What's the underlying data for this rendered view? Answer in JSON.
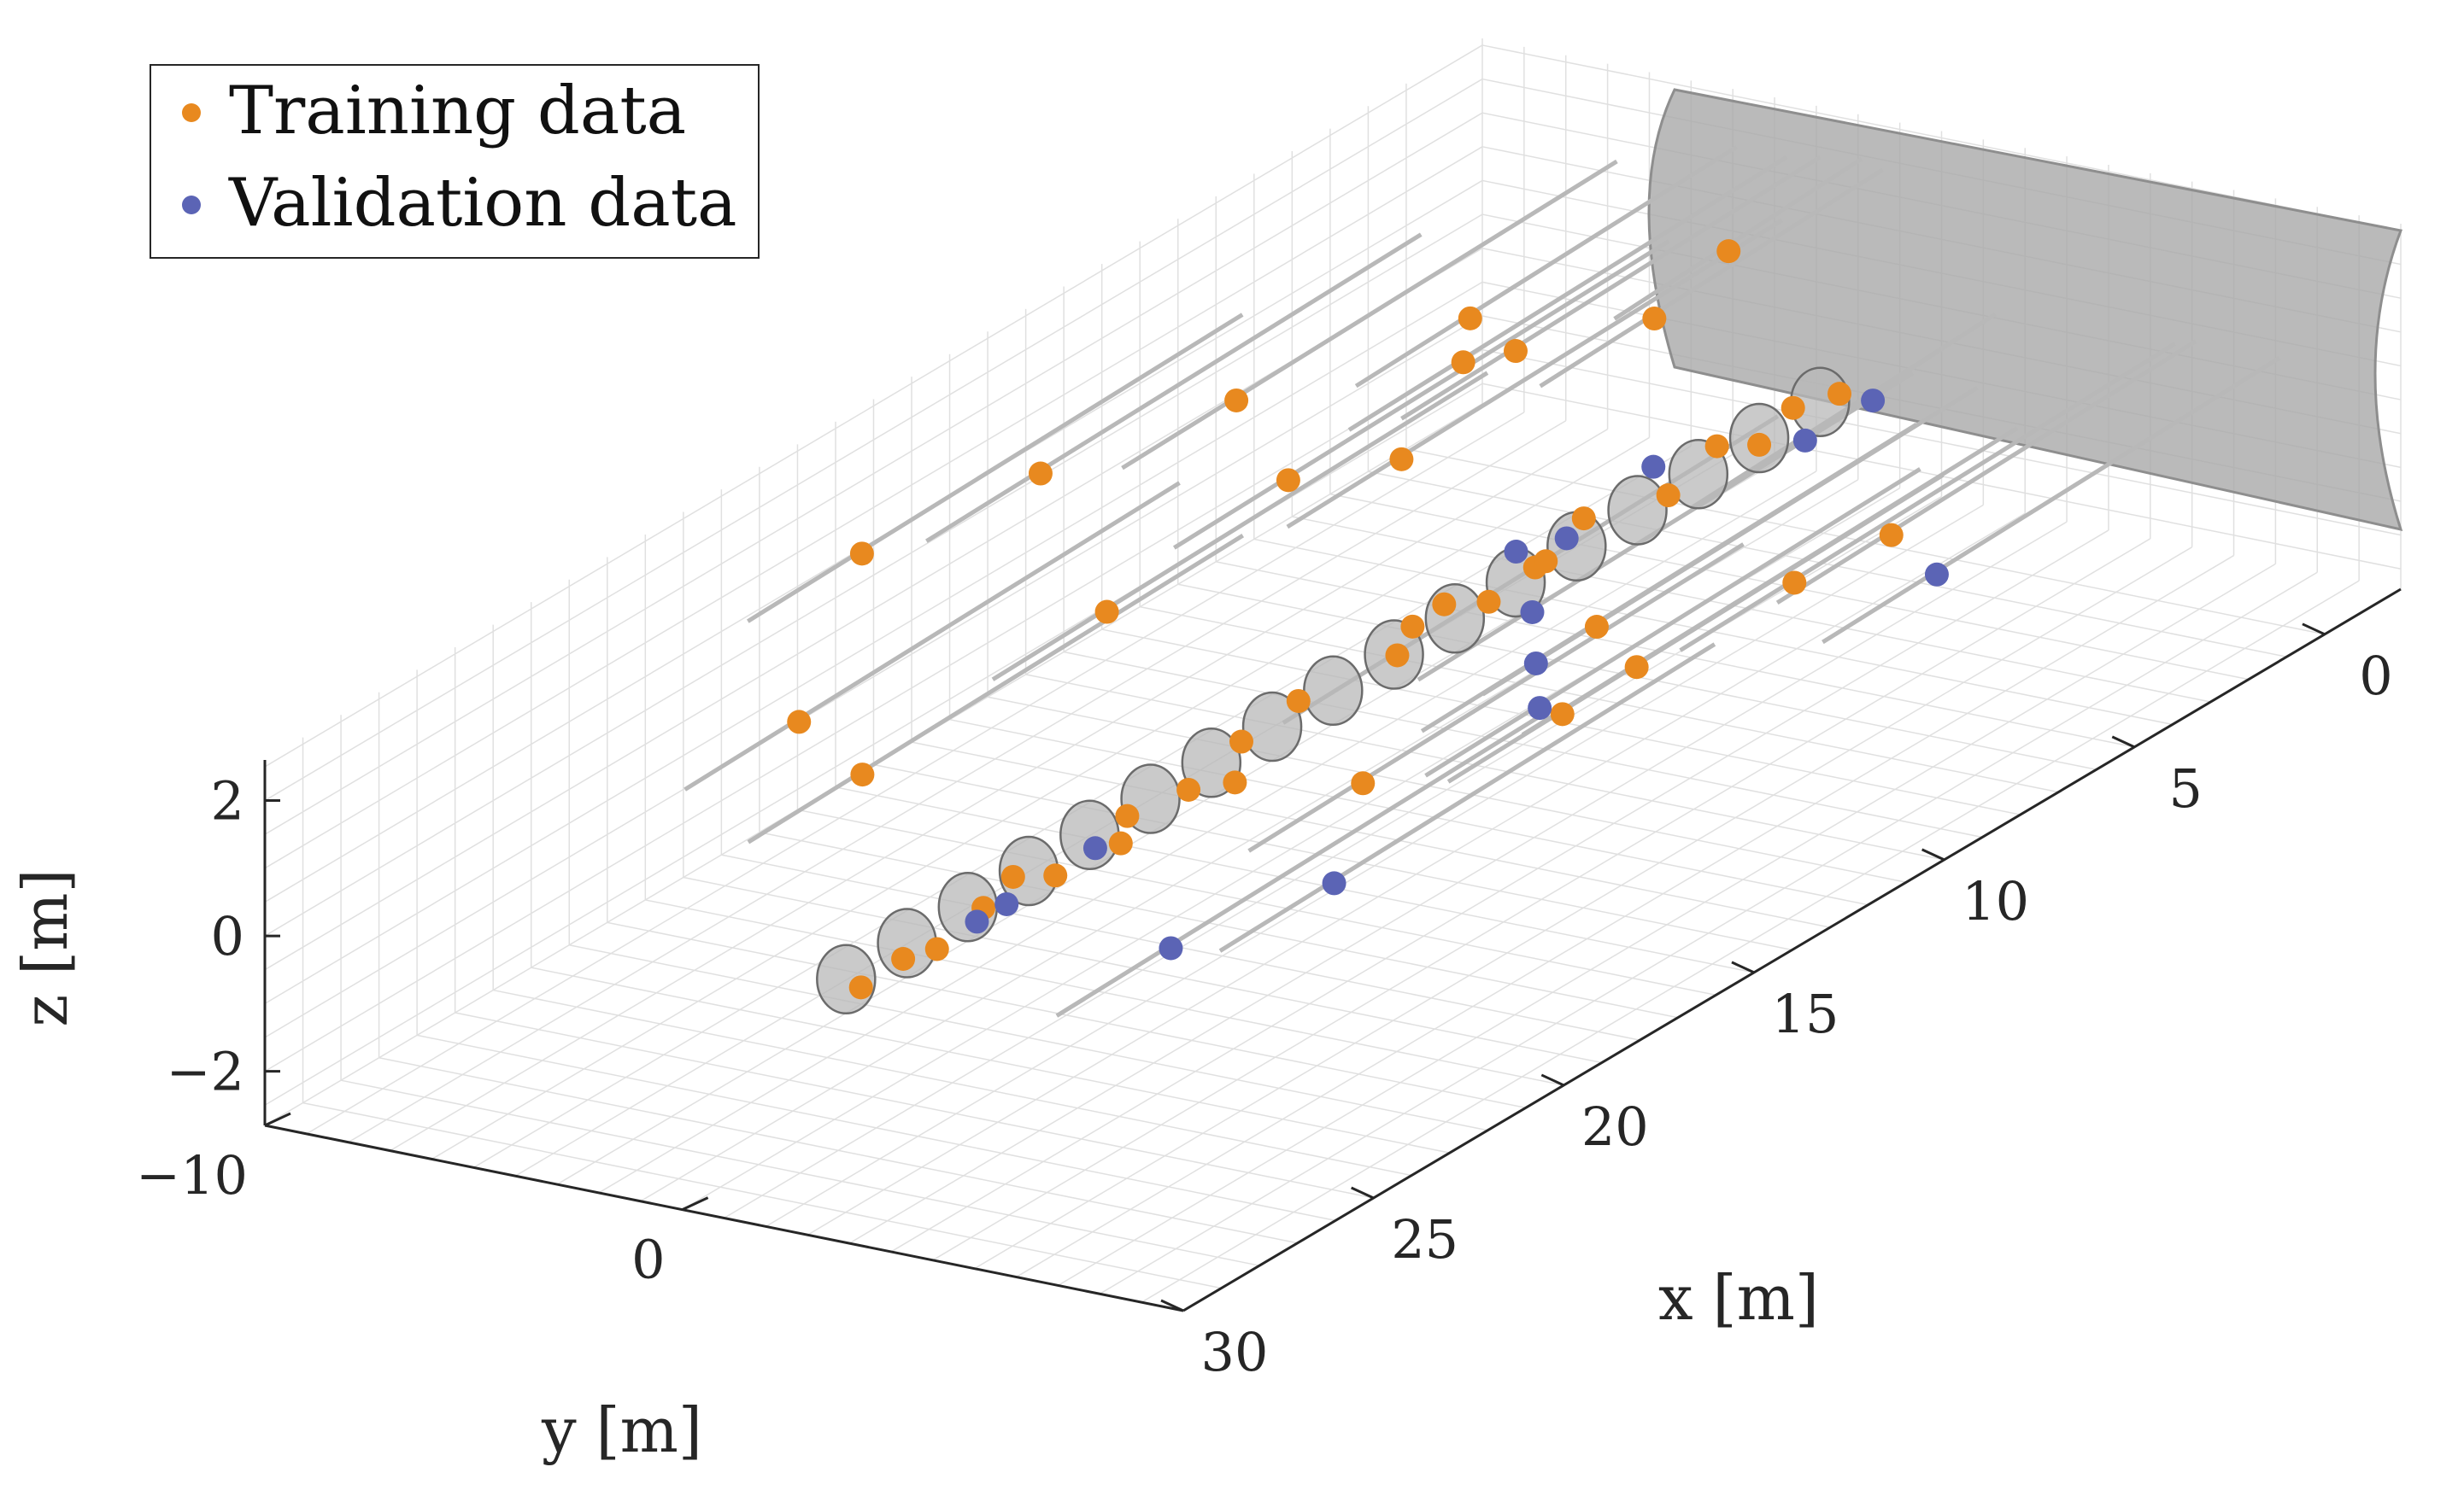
{
  "chart_data": {
    "type": "scatter",
    "view": "3d",
    "title": "",
    "xlabel": "x [m]",
    "ylabel": "y [m]",
    "zlabel": "z [m]",
    "x_ticks": [
      "0",
      "5",
      "10",
      "15",
      "20",
      "25",
      "30"
    ],
    "y_ticks": [
      "−10",
      "0"
    ],
    "z_ticks": [
      "2",
      "0",
      "−2"
    ],
    "xlim": [
      -2,
      30
    ],
    "ylim": [
      -10,
      12
    ],
    "zlim": [
      -2.8,
      2.6
    ],
    "grid": true,
    "legend_position": "top-left",
    "colors": {
      "training": "#e8891f",
      "validation": "#5b64b5",
      "rod": "#b8b8b8",
      "tunnel_wall": "#a9a9a9",
      "grid": "#e0e0e0",
      "axis": "#262626"
    },
    "series": [
      {
        "name": "Training data",
        "points": [
          [
            16.5,
            -8.0,
            1.4
          ],
          [
            19.8,
            -6.5,
            0.2
          ],
          [
            14.0,
            -6.0,
            2.0
          ],
          [
            20.0,
            -4.8,
            -0.3
          ],
          [
            10.5,
            -4.5,
            2.1
          ],
          [
            15.0,
            -3.5,
            0.6
          ],
          [
            6.0,
            -3.0,
            2.0
          ],
          [
            11.0,
            -2.8,
            1.3
          ],
          [
            7.5,
            -1.8,
            2.0
          ],
          [
            7.0,
            -1.0,
            2.1
          ],
          [
            10.0,
            -1.0,
            1.5
          ],
          [
            2.5,
            0.0,
            2.2
          ],
          [
            5.0,
            0.5,
            2.1
          ],
          [
            16.0,
            2.0,
            0.3
          ],
          [
            14.5,
            3.0,
            0.6
          ],
          [
            16.5,
            4.0,
            -0.5
          ],
          [
            12.0,
            5.5,
            0.5
          ],
          [
            11.5,
            6.0,
            -0.2
          ],
          [
            14.0,
            6.5,
            0.0
          ],
          [
            9.0,
            7.5,
            0.4
          ],
          [
            7.0,
            8.0,
            0.5
          ],
          [
            18.0,
            2.3,
            -0.2
          ],
          [
            17.5,
            2.0,
            0.2
          ],
          [
            13.0,
            2.0,
            0.4
          ],
          [
            11.0,
            2.0,
            0.1
          ],
          [
            10.0,
            2.2,
            0.3
          ],
          [
            8.5,
            2.0,
            0.5
          ],
          [
            6.5,
            2.2,
            0.2
          ],
          [
            5.0,
            2.0,
            0.4
          ],
          [
            4.0,
            2.1,
            0.1
          ],
          [
            3.0,
            2.0,
            0.3
          ],
          [
            2.0,
            2.2,
            0.2
          ],
          [
            20.5,
            2.0,
            0.1
          ],
          [
            21.0,
            2.3,
            -0.1
          ],
          [
            19.0,
            2.1,
            0.0
          ],
          [
            22.5,
            2.1,
            -0.1
          ],
          [
            23.5,
            2.0,
            0.2
          ],
          [
            25.5,
            2.0,
            -0.2
          ],
          [
            24.5,
            2.2,
            0.1
          ],
          [
            26.5,
            2.1,
            0.0
          ],
          [
            27.5,
            2.0,
            -0.1
          ],
          [
            12.5,
            2.3,
            0.6
          ],
          [
            9.5,
            2.0,
            0.2
          ]
        ]
      },
      {
        "name": "Validation data",
        "points": [
          [
            21.0,
            3.5,
            -1.5
          ],
          [
            20.0,
            6.5,
            -0.5
          ],
          [
            11.5,
            3.5,
            0.3
          ],
          [
            12.5,
            4.5,
            0.0
          ],
          [
            13.5,
            5.5,
            -0.2
          ],
          [
            8.0,
            10.0,
            0.5
          ],
          [
            4.0,
            3.2,
            0.3
          ],
          [
            2.0,
            3.0,
            0.2
          ],
          [
            7.0,
            2.3,
            0.8
          ],
          [
            9.5,
            2.5,
            0.6
          ],
          [
            25.0,
            2.5,
            0.1
          ],
          [
            22.0,
            2.6,
            0.2
          ],
          [
            24.0,
            2.3,
            0.0
          ],
          [
            10.5,
            2.2,
            0.7
          ]
        ]
      }
    ]
  }
}
